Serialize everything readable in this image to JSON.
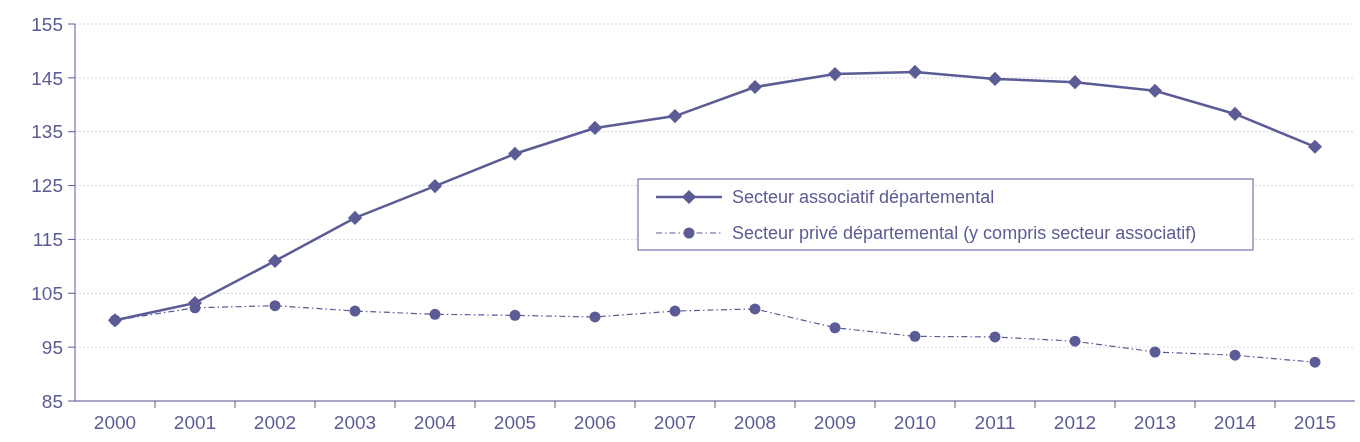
{
  "chart_data": {
    "type": "line",
    "categories": [
      "2000",
      "2001",
      "2002",
      "2003",
      "2004",
      "2005",
      "2006",
      "2007",
      "2008",
      "2009",
      "2010",
      "2011",
      "2012",
      "2013",
      "2014",
      "2015"
    ],
    "series": [
      {
        "name": "Secteur associatif départemental",
        "color": "#5b5b96",
        "marker": "diamond",
        "line_style": "solid",
        "values": [
          100,
          103.2,
          111,
          119,
          124.9,
          130.9,
          135.7,
          137.9,
          143.3,
          145.7,
          146.1,
          144.8,
          144.2,
          142.6,
          138.3,
          132.2
        ]
      },
      {
        "name": "Secteur privé départemental (y compris secteur associatif)",
        "color": "#5b5b96",
        "marker": "circle",
        "line_style": "dashed",
        "values": [
          100,
          102.3,
          102.7,
          101.7,
          101.1,
          100.9,
          100.6,
          101.7,
          102.1,
          98.6,
          97,
          96.9,
          96.1,
          94.1,
          93.5,
          92.2
        ]
      }
    ],
    "ylim": [
      85,
      155
    ],
    "yticks": [
      85,
      95,
      105,
      115,
      125,
      135,
      145,
      155
    ],
    "grid": "y",
    "legend": "right"
  }
}
